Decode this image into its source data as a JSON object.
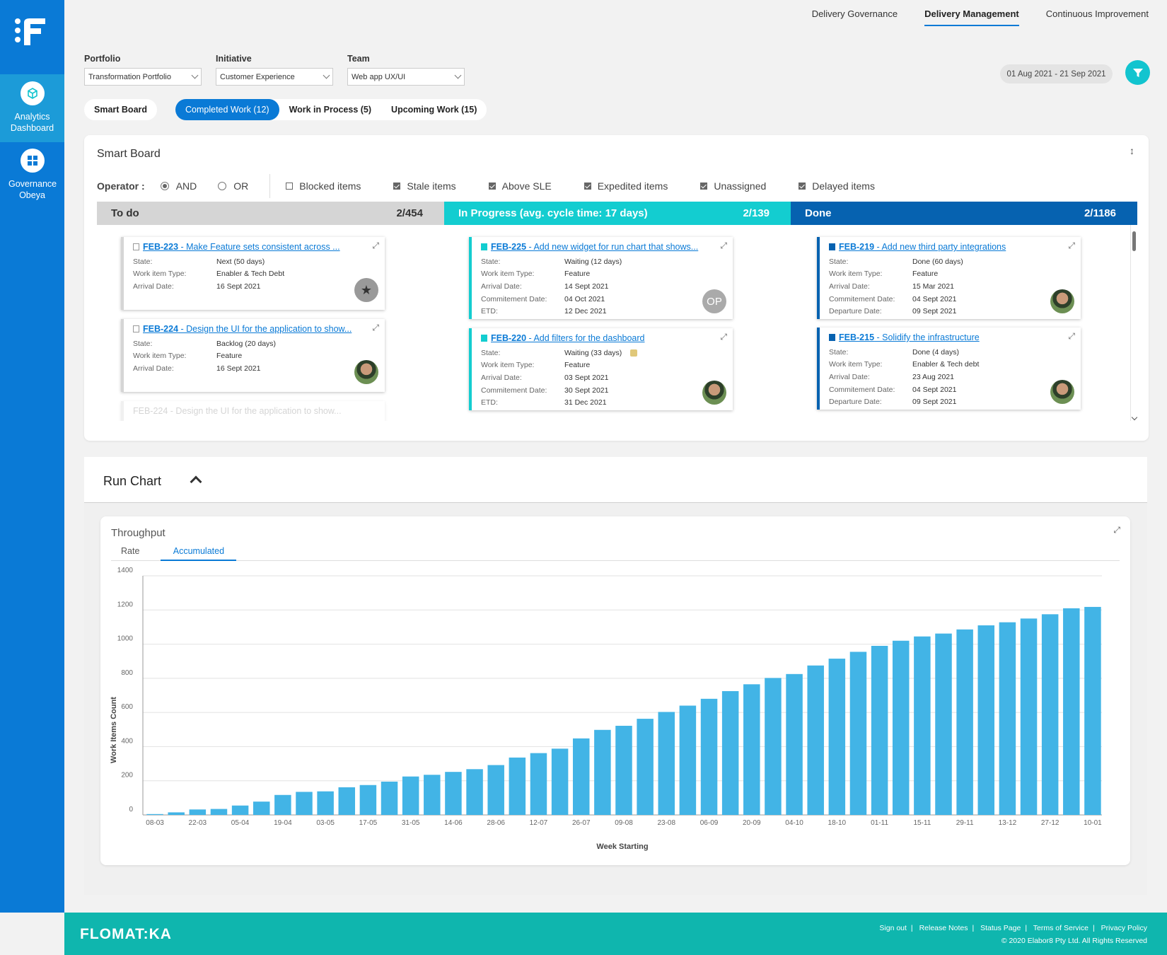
{
  "sidebar": {
    "items": [
      {
        "label": "Analytics Dashboard",
        "icon": "cube-icon"
      },
      {
        "label": "Governance Obeya",
        "icon": "grid-icon"
      }
    ]
  },
  "topnav": {
    "items": [
      "Delivery Governance",
      "Delivery Management",
      "Continuous Improvement"
    ],
    "active": "Delivery Management"
  },
  "filters": {
    "portfolio": {
      "label": "Portfolio",
      "value": "Transformation Portfolio"
    },
    "initiative": {
      "label": "Initiative",
      "value": "Customer Experience"
    },
    "team": {
      "label": "Team",
      "value": "Web app UX/UI"
    },
    "date_range": "01 Aug 2021 - 21 Sep 2021"
  },
  "tabs": {
    "smart_board": "Smart Board",
    "completed": "Completed Work (12)",
    "in_process": "Work in Process (5)",
    "upcoming": "Upcoming Work (15)"
  },
  "board": {
    "title": "Smart Board",
    "operator_label": "Operator :",
    "operator_and": "AND",
    "operator_or": "OR",
    "checks": [
      {
        "label": "Blocked items",
        "checked": false
      },
      {
        "label": "Stale items",
        "checked": true
      },
      {
        "label": "Above SLE",
        "checked": true
      },
      {
        "label": "Expedited items",
        "checked": true
      },
      {
        "label": "Unassigned",
        "checked": true
      },
      {
        "label": "Delayed items",
        "checked": true
      }
    ],
    "columns": {
      "todo": {
        "name": "To do",
        "count": "2/454"
      },
      "progress": {
        "name": "In Progress (avg. cycle time: 17 days)",
        "count": "2/139"
      },
      "done": {
        "name": "Done",
        "count": "2/1186"
      }
    },
    "todo_cards": [
      {
        "id": "FEB-223",
        "title": " - Make Feature sets consistent across ...",
        "rows": [
          [
            "State:",
            "Next (50 days)"
          ],
          [
            "Work item Type:",
            "Enabler & Tech Debt"
          ],
          [
            "Arrival Date:",
            "16 Sept 2021"
          ]
        ]
      },
      {
        "id": "FEB-224",
        "title": " - Design the UI for the application to show...",
        "rows": [
          [
            "State:",
            "Backlog (20 days)"
          ],
          [
            "Work item Type:",
            "Feature"
          ],
          [
            "Arrival Date:",
            "16 Sept 2021"
          ]
        ]
      }
    ],
    "todo_faded": "FEB-224 - Design the UI for the application to show...",
    "progress_cards": [
      {
        "id": "FEB-225",
        "title": " - Add new widget for run chart that shows...",
        "avatar": "OP",
        "rows": [
          [
            "State:",
            "Waiting (12 days)"
          ],
          [
            "Work item Type:",
            "Feature"
          ],
          [
            "Arrival Date:",
            "14 Sept 2021"
          ],
          [
            "Commitement Date:",
            "04 Oct 2021"
          ],
          [
            "ETD:",
            "12 Dec 2021"
          ]
        ]
      },
      {
        "id": "FEB-220",
        "title": " - Add filters for the dashboard",
        "rows": [
          [
            "State:",
            "Waiting (33 days)"
          ],
          [
            "Work item Type:",
            "Feature"
          ],
          [
            "Arrival Date:",
            "03 Sept 2021"
          ],
          [
            "Commitement Date:",
            "30 Sept 2021"
          ],
          [
            "ETD:",
            "31 Dec 2021"
          ]
        ]
      }
    ],
    "done_cards": [
      {
        "id": "FEB-219",
        "title": " - Add new third party integrations",
        "rows": [
          [
            "State:",
            "Done (60 days)"
          ],
          [
            "Work item Type:",
            "Feature"
          ],
          [
            "Arrival Date:",
            "15 Mar 2021"
          ],
          [
            "Commitement Date:",
            "04 Sept 2021"
          ],
          [
            "Departure Date:",
            "09 Sept 2021"
          ]
        ]
      },
      {
        "id": "FEB-215",
        "title": " - Solidify the infrastructure",
        "rows": [
          [
            "State:",
            "Done (4 days)"
          ],
          [
            "Work item Type:",
            "Enabler & Tech debt"
          ],
          [
            "Arrival Date:",
            "23 Aug 2021"
          ],
          [
            "Commitement Date:",
            "04 Sept 2021"
          ],
          [
            "Departure Date:",
            "09 Sept 2021"
          ]
        ]
      }
    ]
  },
  "run_chart": {
    "title": "Run Chart",
    "throughput_title": "Throughput",
    "tab_rate": "Rate",
    "tab_accumulated": "Accumulated"
  },
  "chart_data": {
    "type": "bar",
    "xlabel": "Week Starting",
    "ylabel": "Work Items Count",
    "ylim": [
      0,
      1400
    ],
    "yticks": [
      0,
      200,
      400,
      600,
      800,
      1000,
      1200,
      1400
    ],
    "grid": true,
    "color": "#42b4e6",
    "tick_labels": [
      "08-03",
      "22-03",
      "05-04",
      "19-04",
      "03-05",
      "17-05",
      "31-05",
      "14-06",
      "28-06",
      "12-07",
      "26-07",
      "09-08",
      "23-08",
      "06-09",
      "20-09",
      "04-10",
      "18-10",
      "01-11",
      "15-11",
      "29-11",
      "13-12",
      "27-12",
      "10-01"
    ],
    "values": [
      5,
      15,
      32,
      35,
      55,
      78,
      117,
      135,
      138,
      162,
      175,
      195,
      225,
      235,
      252,
      268,
      292,
      336,
      362,
      388,
      448,
      498,
      522,
      563,
      603,
      640,
      680,
      725,
      765,
      802,
      825,
      875,
      915,
      955,
      990,
      1020,
      1045,
      1062,
      1086,
      1110,
      1128,
      1150,
      1175,
      1210,
      1218
    ]
  },
  "footer": {
    "brand": "FLOMAT:KA",
    "links": [
      "Sign out",
      "Release Notes",
      "Status Page",
      "Terms of Service",
      "Privacy Policy"
    ],
    "copyright": "© 2020 Elabor8 Pty Ltd. All Rights Reserved"
  }
}
